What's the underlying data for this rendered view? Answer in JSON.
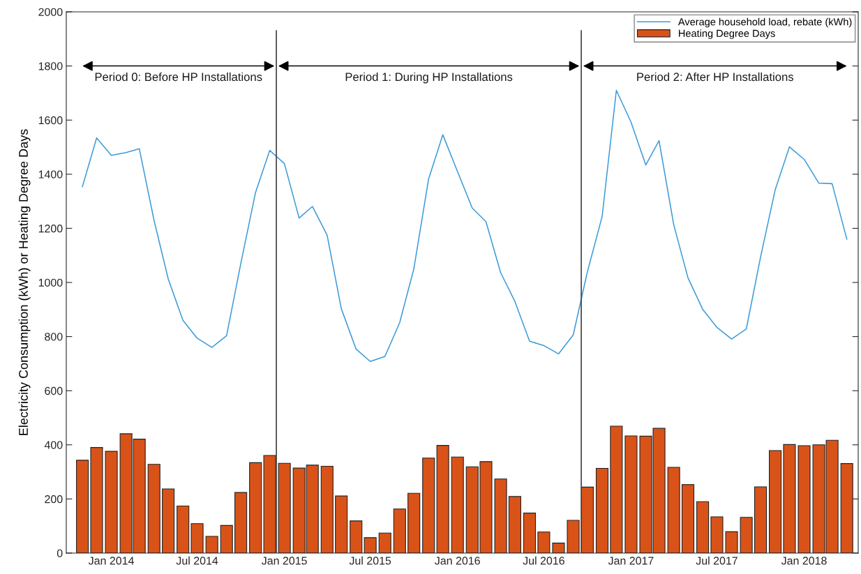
{
  "chart_data": {
    "type": "bar",
    "ylabel": "Electricity Consumption (kWh) or Heating Degree Days",
    "x": [
      "2013-11",
      "2013-12",
      "2014-01",
      "2014-02",
      "2014-03",
      "2014-04",
      "2014-05",
      "2014-06",
      "2014-07",
      "2014-08",
      "2014-09",
      "2014-10",
      "2014-11",
      "2014-12",
      "2015-01",
      "2015-02",
      "2015-03",
      "2015-04",
      "2015-05",
      "2015-06",
      "2015-07",
      "2015-08",
      "2015-09",
      "2015-10",
      "2015-11",
      "2015-12",
      "2016-01",
      "2016-02",
      "2016-03",
      "2016-04",
      "2016-05",
      "2016-06",
      "2016-07",
      "2016-08",
      "2016-09",
      "2016-10",
      "2016-11",
      "2016-12",
      "2017-01",
      "2017-02",
      "2017-03",
      "2017-04",
      "2017-05",
      "2017-06",
      "2017-07",
      "2017-08",
      "2017-09",
      "2017-10",
      "2017-11",
      "2017-12",
      "2018-01",
      "2018-02",
      "2018-03",
      "2018-04"
    ],
    "series": [
      {
        "name": "Average household load, rebate (kWh)",
        "type": "line",
        "color": "#3a9ad9",
        "values": [
          1354,
          1534,
          1470,
          1480,
          1494,
          1230,
          1013,
          860,
          794,
          760,
          803,
          1070,
          1332,
          1488,
          1439,
          1238,
          1281,
          1175,
          903,
          754,
          708,
          727,
          851,
          1051,
          1382,
          1546,
          1410,
          1275,
          1225,
          1036,
          930,
          783,
          767,
          736,
          806,
          1040,
          1244,
          1710,
          1592,
          1434,
          1524,
          1213,
          1017,
          901,
          834,
          791,
          828,
          1093,
          1343,
          1501,
          1455,
          1367,
          1365,
          1160
        ]
      },
      {
        "name": "Heating Degree Days",
        "color": "#d95319",
        "values": [
          343,
          390,
          376,
          441,
          421,
          328,
          237,
          174,
          109,
          62,
          102,
          224,
          334,
          361,
          332,
          314,
          325,
          321,
          211,
          119,
          57,
          74,
          163,
          221,
          351,
          398,
          355,
          319,
          338,
          274,
          209,
          148,
          78,
          37,
          121,
          244,
          313,
          469,
          433,
          432,
          461,
          317,
          253,
          190,
          134,
          79,
          132,
          245,
          379,
          401,
          397,
          400,
          417,
          331
        ]
      }
    ],
    "xlim": [
      "2013-09-28",
      "2018-04-25"
    ],
    "xticks": [
      {
        "value": "2014-01",
        "label": "Jan 2014"
      },
      {
        "value": "2014-07",
        "label": "Jul 2014"
      },
      {
        "value": "2015-01",
        "label": "Jan 2015"
      },
      {
        "value": "2015-07",
        "label": "Jul 2015"
      },
      {
        "value": "2016-01",
        "label": "Jan 2016"
      },
      {
        "value": "2016-07",
        "label": "Jul 2016"
      },
      {
        "value": "2017-01",
        "label": "Jan 2017"
      },
      {
        "value": "2017-07",
        "label": "Jul 2017"
      },
      {
        "value": "2018-01",
        "label": "Jan 2018"
      }
    ],
    "ylim": [
      0,
      2000
    ],
    "yticks": [
      0,
      200,
      400,
      600,
      800,
      1000,
      1200,
      1400,
      1600,
      1800,
      2000
    ],
    "ref_lines": [
      {
        "axis": "x",
        "value": "2014-12-15",
        "color": "#404040"
      },
      {
        "axis": "x",
        "value": "2016-09-18",
        "color": "#404040"
      }
    ],
    "annotations": [
      "Period 0: Before HP Installations",
      "Period 1: During HP Installations",
      "Period 2: After HP Installations"
    ],
    "grid": false,
    "legend": "top right",
    "line_style": "solid"
  }
}
